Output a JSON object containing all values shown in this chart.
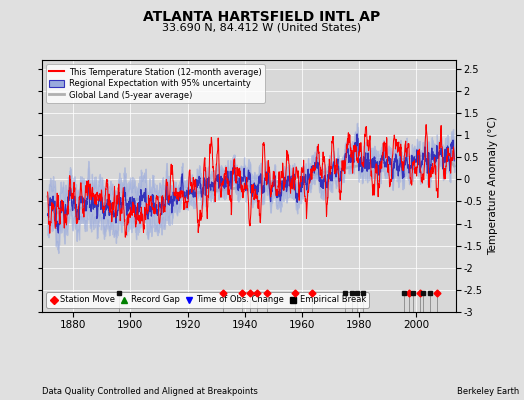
{
  "title": "ATLANTA HARTSFIELD INTL AP",
  "subtitle": "33.690 N, 84.412 W (United States)",
  "ylabel": "Temperature Anomaly (°C)",
  "footer_left": "Data Quality Controlled and Aligned at Breakpoints",
  "footer_right": "Berkeley Earth",
  "ylim": [
    -3.0,
    2.7
  ],
  "xlim": [
    1869,
    2014
  ],
  "yticks": [
    -3,
    -2.5,
    -2,
    -1.5,
    -1,
    -0.5,
    0,
    0.5,
    1,
    1.5,
    2,
    2.5
  ],
  "xticks": [
    1880,
    1900,
    1920,
    1940,
    1960,
    1980,
    2000
  ],
  "bg_color": "#e0e0e0",
  "plot_bg_color": "#d8d8d8",
  "station_moves": [
    1932.5,
    1939.0,
    1942.0,
    1944.5,
    1948.0,
    1957.5,
    1963.5,
    1997.5,
    2001.5,
    2007.5
  ],
  "empirical_breaks": [
    1896.0,
    1975.0,
    1977.5,
    1979.5,
    1981.5,
    1996.0,
    1999.0,
    2002.5,
    2005.0
  ],
  "seed": 12345
}
